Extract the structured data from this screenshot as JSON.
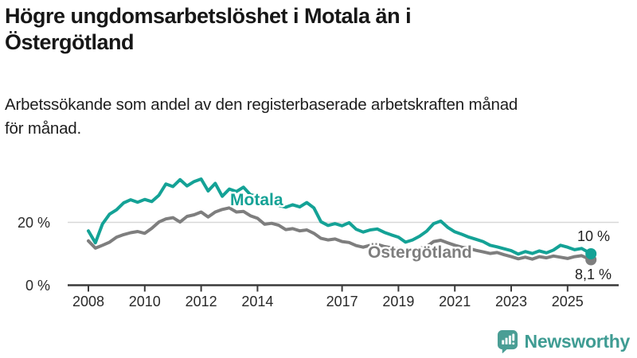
{
  "title": "Högre ungdomsarbetslöshet i Motala än i\nÖstergötland",
  "subtitle": "Arbetssökande som andel av den registerbaserade arbetskraften månad\nför månad.",
  "branding": {
    "logo_text": "Newsworthy",
    "logo_icon": "newsworthy-chart-bubble-icon",
    "brand_color": "#3f9c93"
  },
  "colors": {
    "motala_line": "#14a296",
    "ostergotland_line": "#7e7e7e",
    "axis": "#3a3a3a",
    "gridline": "#d8d8d8"
  },
  "chart_data": {
    "type": "line",
    "title": "Högre ungdomsarbetslöshet i Motala än i Östergötland",
    "subtitle": "Arbetssökande som andel av den registerbaserade arbetskraften månad för månad.",
    "xlabel": "",
    "ylabel": "",
    "x_unit": "decimal year (monthly series, approximate quarterly samples)",
    "value_unit": "% av registerbaserad arbetskraft",
    "xlim": [
      2007.3,
      2026.8
    ],
    "ylim": [
      0,
      35
    ],
    "grid_values": [
      20
    ],
    "legend_position": "inline-labels",
    "yticks": [
      {
        "value": 20,
        "label": "20 %"
      },
      {
        "value": 0,
        "label": "0 %"
      }
    ],
    "xticks": [
      {
        "value": 2008,
        "label": "2008"
      },
      {
        "value": 2010,
        "label": "2010"
      },
      {
        "value": 2012,
        "label": "2012"
      },
      {
        "value": 2014,
        "label": "2014"
      },
      {
        "value": 2017,
        "label": "2017"
      },
      {
        "value": 2019,
        "label": "2019"
      },
      {
        "value": 2021,
        "label": "2021"
      },
      {
        "value": 2023,
        "label": "2023"
      },
      {
        "value": 2025,
        "label": "2025"
      }
    ],
    "x": [
      2008,
      2008.25,
      2008.5,
      2008.75,
      2009,
      2009.25,
      2009.5,
      2009.75,
      2010,
      2010.25,
      2010.5,
      2010.75,
      2011,
      2011.25,
      2011.5,
      2011.75,
      2012,
      2012.25,
      2012.5,
      2012.75,
      2013,
      2013.25,
      2013.5,
      2013.75,
      2014,
      2014.25,
      2014.5,
      2014.75,
      2015,
      2015.25,
      2015.5,
      2015.75,
      2016,
      2016.25,
      2016.5,
      2016.75,
      2017,
      2017.25,
      2017.5,
      2017.75,
      2018,
      2018.25,
      2018.5,
      2018.75,
      2019,
      2019.25,
      2019.5,
      2019.75,
      2020,
      2020.25,
      2020.5,
      2020.75,
      2021,
      2021.25,
      2021.5,
      2021.75,
      2022,
      2022.25,
      2022.5,
      2022.75,
      2023,
      2023.25,
      2023.5,
      2023.75,
      2024,
      2024.25,
      2024.5,
      2024.75,
      2025,
      2025.25,
      2025.5,
      2025.83
    ],
    "series": [
      {
        "name": "Motala",
        "color": "#14a296",
        "end_label": "10 %",
        "end_value": 10.0,
        "values": [
          17.3,
          13.5,
          19.5,
          22.6,
          24.0,
          26.2,
          27.2,
          26.4,
          27.3,
          26.6,
          28.6,
          32.2,
          31.4,
          33.6,
          31.6,
          33.0,
          33.8,
          30.0,
          32.4,
          28.3,
          30.6,
          29.8,
          31.2,
          28.8,
          28.2,
          26.4,
          27.4,
          25.4,
          24.8,
          25.6,
          24.9,
          26.3,
          24.6,
          20.2,
          19.0,
          19.6,
          18.9,
          19.9,
          17.8,
          16.9,
          17.6,
          17.9,
          16.8,
          16.0,
          15.3,
          13.7,
          14.4,
          15.6,
          17.2,
          19.6,
          20.4,
          18.4,
          17.0,
          16.2,
          15.3,
          14.6,
          13.9,
          12.7,
          12.2,
          11.6,
          11.0,
          9.9,
          10.7,
          10.1,
          10.9,
          10.3,
          11.2,
          12.7,
          12.1,
          11.3,
          11.7,
          10.0
        ]
      },
      {
        "name": "Östergötland",
        "color": "#7e7e7e",
        "end_label": "8,1 %",
        "end_value": 8.1,
        "values": [
          14.1,
          11.8,
          12.7,
          13.7,
          15.3,
          16.1,
          16.7,
          17.1,
          16.5,
          18.1,
          20.1,
          21.1,
          21.5,
          20.1,
          21.9,
          22.4,
          23.3,
          21.7,
          23.3,
          24.1,
          24.6,
          23.3,
          23.5,
          22.1,
          21.3,
          19.4,
          19.7,
          19.1,
          17.7,
          18.0,
          17.3,
          17.6,
          16.5,
          14.9,
          14.4,
          14.7,
          13.9,
          13.6,
          12.6,
          12.1,
          12.7,
          13.0,
          12.3,
          11.9,
          11.5,
          11.1,
          11.4,
          11.7,
          12.3,
          13.9,
          14.3,
          13.5,
          12.7,
          12.1,
          11.7,
          11.1,
          10.6,
          10.1,
          10.4,
          9.7,
          9.1,
          8.4,
          8.9,
          8.3,
          9.1,
          8.7,
          9.3,
          8.9,
          8.5,
          9.1,
          9.4,
          8.1
        ]
      }
    ]
  }
}
